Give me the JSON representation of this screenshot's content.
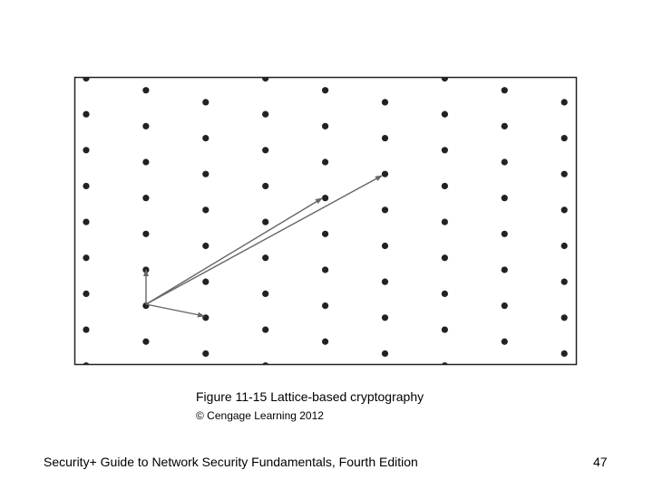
{
  "figure": {
    "caption": "Figure 11-15 Lattice-based cryptography",
    "credit": "© Cengage Learning 2012"
  },
  "footer": {
    "title": "Security+ Guide to Network Security Fundamentals, Fourth Edition",
    "page": "47"
  }
}
